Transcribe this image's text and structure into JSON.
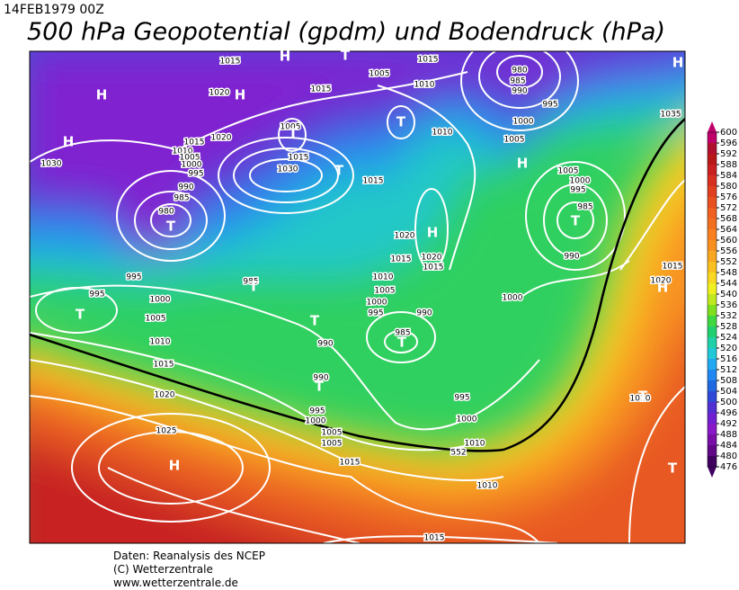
{
  "header": {
    "date": "14FEB1979 00Z",
    "title": "500 hPa Geopotential (gpdm) und Bodendruck (hPa)"
  },
  "isobar_labels": [
    "1015",
    "1015",
    "1005",
    "1010",
    "1015",
    "1020",
    "980",
    "985",
    "990",
    "995",
    "1000",
    "1005",
    "1035",
    "1010",
    "1005",
    "1020",
    "1015",
    "1010",
    "1005",
    "1000",
    "995",
    "1030",
    "1015",
    "1030",
    "990",
    "985",
    "980",
    "1015",
    "1005",
    "1000",
    "995",
    "985",
    "990",
    "1020",
    "1020",
    "1015",
    "1015",
    "1015",
    "1020",
    "995",
    "995",
    "985",
    "1010",
    "1005",
    "1000",
    "995",
    "990",
    "985",
    "1000",
    "1000",
    "1005",
    "1010",
    "1015",
    "990",
    "990",
    "1020",
    "995",
    "995",
    "1000",
    "1010",
    "1000",
    "1005",
    "1010",
    "1005",
    "552",
    "1015",
    "1025",
    "1010",
    "1015"
  ],
  "pressure_centers": [
    "H",
    "T",
    "H",
    "H",
    "H",
    "T",
    "T",
    "T",
    "H",
    "T",
    "T",
    "H",
    "T",
    "T",
    "T",
    "T",
    "H",
    "T",
    "H",
    "T",
    "T",
    "H"
  ],
  "colorbar": {
    "ticks": [
      600,
      596,
      592,
      588,
      584,
      580,
      576,
      572,
      568,
      564,
      560,
      556,
      552,
      548,
      544,
      540,
      536,
      532,
      528,
      524,
      520,
      516,
      512,
      508,
      504,
      500,
      496,
      492,
      488,
      484,
      480,
      476
    ],
    "colors": [
      "#c0006a",
      "#b01030",
      "#b81818",
      "#c82020",
      "#d83020",
      "#e04020",
      "#e85020",
      "#f06020",
      "#f07020",
      "#f88020",
      "#f89020",
      "#f8a820",
      "#f8c020",
      "#f8d820",
      "#f0f020",
      "#c0e820",
      "#80e020",
      "#40d840",
      "#20d070",
      "#20d0a8",
      "#20c8d8",
      "#20a8f0",
      "#2088f0",
      "#2068e0",
      "#3048d8",
      "#5030d0",
      "#7020d0",
      "#8818c8",
      "#7810a8",
      "#600888",
      "#400060"
    ]
  },
  "footer": [
    "Daten: Reanalysis des NCEP",
    "(C) Wetterzentrale",
    "www.wetterzentrale.de"
  ]
}
